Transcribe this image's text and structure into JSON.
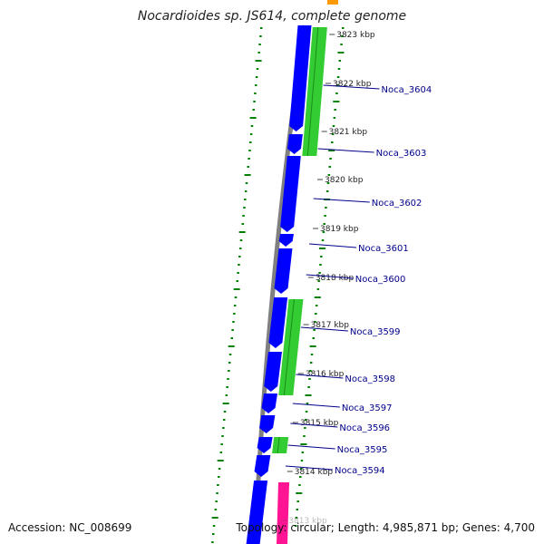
{
  "title": "Nocardioides sp. JS614, complete genome",
  "footer": {
    "accession": "Accession: NC_008699",
    "topology": "Topology: circular; Length: 4,985,871 bp; Genes: 4,700"
  },
  "colors": {
    "backbone": "#808080",
    "cds_forward": "#0000ff",
    "cds_reverse": "#33cc33",
    "gc_skew_dots": "#008000",
    "orange_feature": "#ff9900",
    "pink_feature": "#ff1493",
    "label_text": "#00008b",
    "tick_text": "#222222"
  },
  "chart_data": {
    "type": "genome-map",
    "ticks": [
      "3823 kbp",
      "3822 kbp",
      "3821 kbp",
      "3820 kbp",
      "3819 kbp",
      "3818 kbp",
      "3817 kbp",
      "3816 kbp",
      "3815 kbp",
      "3814 kbp",
      "3813 kbp"
    ],
    "genes": [
      "Noca_3604",
      "Noca_3603",
      "Noca_3602",
      "Noca_3601",
      "Noca_3600",
      "Noca_3599",
      "Noca_3598",
      "Noca_3597",
      "Noca_3596",
      "Noca_3595",
      "Noca_3594"
    ]
  }
}
